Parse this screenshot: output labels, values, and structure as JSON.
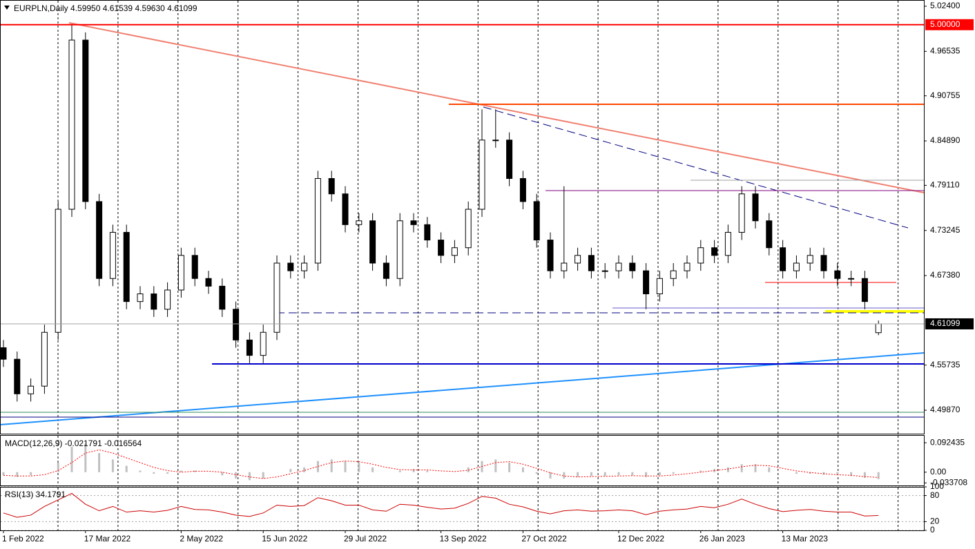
{
  "chart_data": [
    {
      "type": "candlestick",
      "title": "EURPLN,Daily  4.59950 4.61539 4.59630 4.61099",
      "categories": [
        "1 Feb 2022",
        null,
        null,
        null,
        null,
        null,
        "17 Mar 2022",
        null,
        null,
        null,
        null,
        null,
        null,
        "2 May 2022",
        null,
        null,
        null,
        null,
        null,
        "15 Jun 2022",
        null,
        null,
        null,
        null,
        null,
        "29 Jul 2022",
        null,
        null,
        null,
        null,
        null,
        null,
        "13 Sep 2022",
        null,
        null,
        null,
        null,
        null,
        "27 Oct 2022",
        null,
        null,
        null,
        null,
        null,
        null,
        "12 Dec 2022",
        null,
        null,
        null,
        null,
        null,
        "26 Jan 2023",
        null,
        null,
        null,
        null,
        null,
        "13 Mar 2023",
        null,
        null,
        null,
        null,
        null,
        null,
        null
      ],
      "open": [
        4.58,
        4.565,
        4.52,
        4.53,
        4.6,
        4.76,
        4.98,
        4.77,
        4.67,
        4.73,
        4.64,
        4.65,
        4.63,
        4.655,
        4.7,
        4.67,
        4.66,
        4.63,
        4.59,
        4.57,
        4.6,
        4.69,
        4.68,
        4.69,
        4.8,
        4.78,
        4.74,
        4.745,
        4.69,
        4.67,
        4.745,
        4.74,
        4.72,
        4.7,
        4.71,
        4.76,
        4.85,
        4.85,
        4.8,
        4.77,
        4.72,
        4.68,
        4.69,
        4.7,
        4.68,
        4.68,
        4.69,
        4.68,
        4.65,
        4.67,
        4.68,
        4.69,
        4.71,
        4.7,
        4.73,
        4.78,
        4.745,
        4.71,
        4.68,
        4.69,
        4.7,
        4.68,
        4.67,
        4.67,
        4.5995
      ],
      "high": [
        4.59,
        4.575,
        4.54,
        4.61,
        4.77,
        5.0,
        4.99,
        4.78,
        4.74,
        4.74,
        4.66,
        4.66,
        4.665,
        4.71,
        4.71,
        4.68,
        4.67,
        4.64,
        4.6,
        4.61,
        4.7,
        4.7,
        4.7,
        4.81,
        4.81,
        4.79,
        4.755,
        4.755,
        4.7,
        4.755,
        4.755,
        4.75,
        4.73,
        4.72,
        4.77,
        4.89,
        4.89,
        4.86,
        4.81,
        4.78,
        4.73,
        4.79,
        4.71,
        4.71,
        4.69,
        4.7,
        4.7,
        4.69,
        4.68,
        4.69,
        4.7,
        4.72,
        4.72,
        4.74,
        4.79,
        4.79,
        4.755,
        4.72,
        4.7,
        4.71,
        4.71,
        4.69,
        4.68,
        4.68,
        4.61539
      ],
      "low": [
        4.555,
        4.51,
        4.51,
        4.52,
        4.59,
        4.75,
        4.76,
        4.66,
        4.66,
        4.63,
        4.63,
        4.62,
        4.62,
        4.645,
        4.66,
        4.65,
        4.62,
        4.58,
        4.56,
        4.56,
        4.59,
        4.67,
        4.67,
        4.68,
        4.77,
        4.73,
        4.73,
        4.68,
        4.66,
        4.66,
        4.73,
        4.71,
        4.69,
        4.69,
        4.7,
        4.75,
        4.84,
        4.79,
        4.76,
        4.71,
        4.67,
        4.67,
        4.68,
        4.67,
        4.67,
        4.67,
        4.67,
        4.63,
        4.64,
        4.66,
        4.67,
        4.68,
        4.69,
        4.69,
        4.72,
        4.735,
        4.7,
        4.67,
        4.67,
        4.68,
        4.67,
        4.66,
        4.66,
        4.63,
        4.5963
      ],
      "close": [
        4.565,
        4.52,
        4.53,
        4.6,
        4.76,
        4.98,
        4.77,
        4.67,
        4.73,
        4.64,
        4.65,
        4.63,
        4.655,
        4.7,
        4.67,
        4.66,
        4.63,
        4.59,
        4.57,
        4.6,
        4.69,
        4.68,
        4.69,
        4.8,
        4.78,
        4.74,
        4.745,
        4.69,
        4.67,
        4.745,
        4.74,
        4.72,
        4.7,
        4.71,
        4.76,
        4.85,
        4.85,
        4.8,
        4.77,
        4.72,
        4.68,
        4.69,
        4.7,
        4.68,
        4.68,
        4.69,
        4.68,
        4.65,
        4.67,
        4.68,
        4.69,
        4.71,
        4.7,
        4.73,
        4.78,
        4.745,
        4.71,
        4.68,
        4.69,
        4.7,
        4.68,
        4.67,
        4.67,
        4.64,
        4.61099
      ],
      "ylim": [
        4.4682,
        5.0321
      ],
      "yticks": [
        {
          "value": 5.024,
          "label": "5.02400"
        },
        {
          "value": 4.96535,
          "label": "4.96535"
        },
        {
          "value": 4.90755,
          "label": "4.90755"
        },
        {
          "value": 4.8489,
          "label": "4.84890"
        },
        {
          "value": 4.7911,
          "label": "4.79110"
        },
        {
          "value": 4.73245,
          "label": "4.73245"
        },
        {
          "value": 4.6738,
          "label": "4.67380"
        },
        {
          "value": 4.55735,
          "label": "4.55735"
        },
        {
          "value": 4.4987,
          "label": "4.49870"
        }
      ],
      "markers": [
        {
          "value": 5.0,
          "label": "5.00000",
          "color": "#ff0000",
          "line_color": "#ff0000"
        },
        {
          "value": 4.61099,
          "label": "4.61099",
          "color": "#000000",
          "line_color": "#a0a0a0"
        }
      ]
    },
    {
      "type": "macd",
      "title": "MACD(12,26,9) -0.021791 -0.016564",
      "histogram": [
        -0.01,
        -0.015,
        -0.01,
        0.0,
        0.03,
        0.08,
        0.09,
        0.06,
        0.04,
        0.02,
        0.005,
        -0.005,
        -0.005,
        0.005,
        0.005,
        0.0,
        -0.01,
        -0.02,
        -0.025,
        -0.02,
        0.0,
        0.01,
        0.015,
        0.035,
        0.04,
        0.035,
        0.03,
        0.015,
        0.0,
        0.005,
        0.01,
        0.005,
        0.0,
        0.0,
        0.015,
        0.035,
        0.04,
        0.03,
        0.015,
        -0.005,
        -0.02,
        -0.02,
        -0.015,
        -0.012,
        -0.012,
        -0.01,
        -0.01,
        -0.015,
        -0.01,
        -0.005,
        0.0,
        0.005,
        0.01,
        0.015,
        0.025,
        0.025,
        0.015,
        0.0,
        -0.005,
        -0.005,
        -0.008,
        -0.01,
        -0.012,
        -0.018,
        -0.021791
      ],
      "signal": [
        -0.01,
        -0.012,
        -0.012,
        -0.008,
        0.005,
        0.03,
        0.06,
        0.07,
        0.06,
        0.045,
        0.03,
        0.015,
        0.005,
        0.0,
        0.003,
        0.003,
        0.0,
        -0.008,
        -0.015,
        -0.02,
        -0.015,
        -0.005,
        0.005,
        0.018,
        0.03,
        0.035,
        0.033,
        0.025,
        0.015,
        0.008,
        0.007,
        0.007,
        0.004,
        0.002,
        0.006,
        0.018,
        0.03,
        0.033,
        0.025,
        0.012,
        -0.002,
        -0.012,
        -0.015,
        -0.014,
        -0.013,
        -0.012,
        -0.011,
        -0.012,
        -0.012,
        -0.009,
        -0.005,
        0.0,
        0.005,
        0.01,
        0.017,
        0.022,
        0.02,
        0.012,
        0.004,
        -0.001,
        -0.005,
        -0.008,
        -0.01,
        -0.014,
        -0.016564
      ],
      "histogram_color": "#c0c0c0",
      "signal_color": "#ff0000",
      "ylim": [
        -0.0418,
        0.1166
      ],
      "yticks": [
        0.092435,
        {
          "value": 0,
          "label": "0.00"
        },
        -0.033708
      ]
    },
    {
      "type": "line",
      "title": "RSI(13) 34.1791",
      "values": [
        40,
        30,
        35,
        55,
        70,
        85,
        60,
        45,
        55,
        42,
        45,
        42,
        46,
        55,
        48,
        47,
        42,
        35,
        32,
        40,
        58,
        55,
        57,
        75,
        68,
        58,
        58,
        47,
        44,
        60,
        58,
        53,
        49,
        51,
        62,
        78,
        74,
        60,
        54,
        44,
        38,
        45,
        47,
        44,
        45,
        47,
        45,
        36,
        44,
        47,
        49,
        55,
        52,
        60,
        72,
        60,
        50,
        43,
        46,
        48,
        44,
        42,
        42,
        33,
        34.1791
      ],
      "color": "#cc0000",
      "ylim": [
        0,
        100
      ],
      "yticks": [
        100,
        80,
        20,
        0
      ],
      "grid": true
    }
  ]
}
